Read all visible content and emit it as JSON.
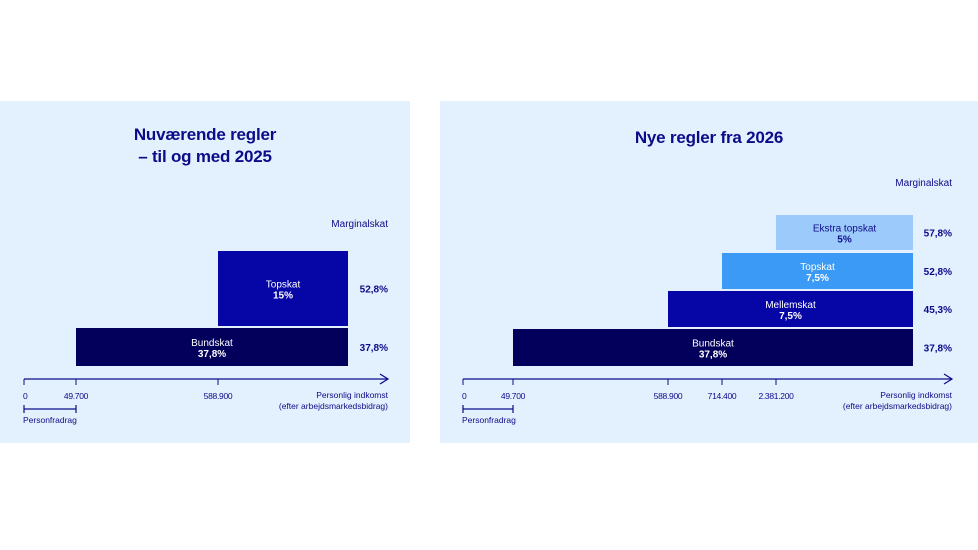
{
  "colors": {
    "panel_bg": "#e3f0fd",
    "text": "#0c0c8a",
    "bundskat": "#02005a",
    "mellemskat": "#0606a6",
    "topskat_old": "#0606a6",
    "topskat_new": "#3a9af5",
    "ekstra_topskat": "#9ccbfb"
  },
  "chart_data": [
    {
      "type": "bar",
      "subtype": "stacked-step",
      "title_line1": "Nuværende regler",
      "title_line2": "– til og med 2025",
      "legend_header": "Marginalskat",
      "x_axis": {
        "label_line1": "Personlig indkomst",
        "label_line2": "(efter arbejdsmarkedsbidrag)",
        "ticks": [
          {
            "value": 0,
            "label": "0"
          },
          {
            "value": 49700,
            "label": "49.700"
          },
          {
            "value": 588900,
            "label": "588.900"
          }
        ],
        "bracket": {
          "from": 0,
          "to": 49700,
          "label": "Personfradrag"
        }
      },
      "series": [
        {
          "name": "Bundskat",
          "rate": "37,8%",
          "start": 49700,
          "marginal": "37,8%",
          "color_key": "bundskat"
        },
        {
          "name": "Topskat",
          "rate": "15%",
          "start": 588900,
          "marginal": "52,8%",
          "color_key": "topskat_old"
        }
      ]
    },
    {
      "type": "bar",
      "subtype": "stacked-step",
      "title_line1": "Nye regler fra 2026",
      "title_line2": "",
      "legend_header": "Marginalskat",
      "x_axis": {
        "label_line1": "Personlig indkomst",
        "label_line2": "(efter arbejdsmarkedsbidrag)",
        "ticks": [
          {
            "value": 0,
            "label": "0"
          },
          {
            "value": 49700,
            "label": "49.700"
          },
          {
            "value": 588900,
            "label": "588.900"
          },
          {
            "value": 714400,
            "label": "714.400"
          },
          {
            "value": 2381200,
            "label": "2.381.200"
          }
        ],
        "bracket": {
          "from": 0,
          "to": 49700,
          "label": "Personfradrag"
        }
      },
      "series": [
        {
          "name": "Bundskat",
          "rate": "37,8%",
          "start": 49700,
          "marginal": "37,8%",
          "color_key": "bundskat"
        },
        {
          "name": "Mellemskat",
          "rate": "7,5%",
          "start": 588900,
          "marginal": "45,3%",
          "color_key": "mellemskat"
        },
        {
          "name": "Topskat",
          "rate": "7,5%",
          "start": 714400,
          "marginal": "52,8%",
          "color_key": "topskat_new"
        },
        {
          "name": "Ekstra topskat",
          "rate": "5%",
          "start": 2381200,
          "marginal": "57,8%",
          "color_key": "ekstra_topskat"
        }
      ]
    }
  ]
}
